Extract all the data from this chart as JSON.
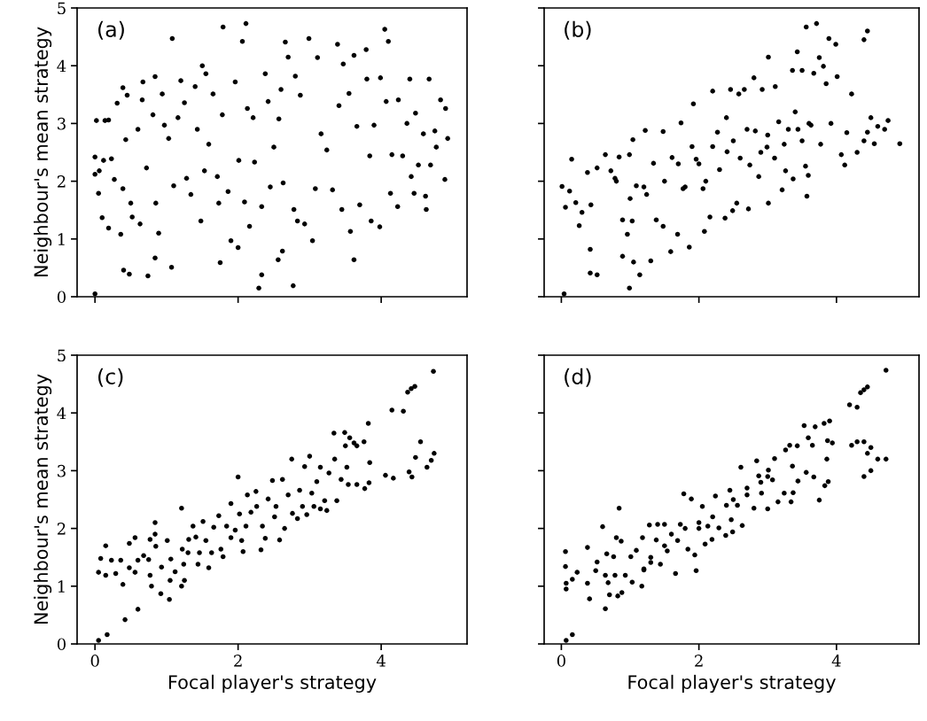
{
  "chart_data": [
    {
      "type": "scatter",
      "ylabel": "Neighbour's mean strategy",
      "annotations": [
        "(a)"
      ],
      "xlim": [
        -0.25,
        5.2
      ],
      "ylim": [
        0,
        5
      ],
      "xticks": [
        0,
        2,
        4
      ],
      "yticks": [
        0,
        1,
        2,
        3,
        4,
        5
      ],
      "tick_labels": "y",
      "marker": "circle",
      "series": [
        {
          "color": "#000000",
          "x": [
            0.0,
            0.0,
            0.02,
            0.0,
            0.06,
            0.05,
            0.1,
            0.14,
            0.19,
            0.12,
            0.19,
            0.23,
            0.27,
            0.31,
            0.36,
            0.39,
            0.4,
            0.48,
            0.45,
            0.43,
            0.39,
            0.5,
            0.52,
            0.67,
            0.6,
            0.63,
            0.66,
            0.72,
            0.74,
            0.81,
            0.84,
            0.84,
            0.85,
            0.89,
            0.94,
            0.97,
            1.03,
            1.07,
            1.08,
            1.1,
            1.16,
            1.2,
            1.25,
            1.28,
            1.34,
            1.4,
            1.43,
            1.48,
            1.5,
            1.55,
            1.53,
            1.59,
            1.65,
            1.71,
            1.73,
            1.75,
            1.78,
            1.79,
            1.86,
            1.9,
            1.96,
            2.0,
            2.01,
            2.06,
            2.11,
            2.09,
            2.13,
            2.16,
            2.21,
            2.23,
            2.29,
            2.33,
            2.33,
            2.38,
            2.42,
            2.45,
            2.5,
            2.56,
            2.57,
            2.6,
            2.62,
            2.63,
            2.66,
            2.7,
            2.77,
            2.78,
            2.8,
            2.83,
            2.87,
            2.93,
            2.99,
            3.04,
            3.11,
            3.08,
            3.16,
            3.24,
            3.32,
            3.39,
            3.41,
            3.45,
            3.47,
            3.55,
            3.57,
            3.62,
            3.62,
            3.66,
            3.7,
            3.79,
            3.8,
            3.84,
            3.86,
            3.9,
            3.98,
            3.99,
            4.05,
            4.1,
            4.07,
            4.13,
            4.15,
            4.23,
            4.24,
            4.3,
            4.36,
            4.4,
            4.42,
            4.46,
            4.48,
            4.52,
            4.59,
            4.62,
            4.63,
            4.67,
            4.69,
            4.75,
            4.77,
            4.83,
            4.89,
            4.9,
            4.93
          ],
          "values": [
            0.05,
            2.42,
            3.05,
            2.12,
            2.18,
            1.79,
            1.37,
            3.05,
            3.06,
            2.36,
            1.19,
            2.39,
            2.03,
            3.35,
            1.08,
            3.62,
            0.46,
            0.39,
            3.49,
            2.72,
            1.87,
            1.62,
            1.38,
            3.72,
            2.9,
            1.26,
            3.41,
            2.23,
            0.36,
            3.15,
            3.81,
            0.67,
            1.62,
            1.1,
            3.51,
            2.97,
            2.74,
            0.51,
            4.47,
            1.92,
            3.1,
            3.74,
            3.36,
            2.05,
            1.77,
            3.64,
            2.9,
            1.31,
            4.0,
            3.86,
            2.18,
            2.64,
            3.51,
            2.08,
            1.62,
            0.59,
            3.15,
            4.67,
            1.82,
            0.97,
            3.72,
            0.85,
            2.36,
            4.42,
            4.73,
            1.64,
            3.26,
            1.22,
            3.1,
            2.33,
            0.15,
            0.38,
            1.56,
            3.86,
            3.38,
            1.9,
            2.59,
            0.64,
            3.08,
            3.59,
            0.79,
            1.97,
            4.41,
            4.15,
            0.19,
            1.51,
            3.82,
            1.31,
            3.49,
            1.26,
            4.47,
            0.97,
            4.14,
            1.87,
            2.82,
            2.54,
            1.85,
            4.37,
            3.31,
            1.51,
            4.03,
            3.52,
            1.13,
            0.64,
            4.18,
            2.95,
            1.59,
            4.28,
            3.77,
            2.44,
            1.31,
            2.97,
            1.21,
            3.79,
            4.63,
            4.42,
            3.38,
            1.79,
            2.46,
            1.56,
            3.41,
            2.44,
            3.0,
            3.77,
            2.08,
            1.79,
            3.18,
            2.28,
            2.82,
            1.74,
            1.51,
            3.77,
            2.28,
            2.87,
            2.59,
            3.41,
            2.03,
            3.26,
            2.74
          ]
        }
      ]
    },
    {
      "type": "scatter",
      "annotations": [
        "(b)"
      ],
      "xlim": [
        -0.25,
        5.2
      ],
      "ylim": [
        0,
        5
      ],
      "xticks": [
        0,
        2,
        4
      ],
      "yticks": [
        0,
        1,
        2,
        3,
        4,
        5
      ],
      "tick_labels": false,
      "marker": "circle",
      "series": [
        {
          "color": "#000000",
          "x": [
            0.04,
            0.01,
            0.06,
            0.15,
            0.12,
            0.21,
            0.26,
            0.3,
            0.38,
            0.42,
            0.42,
            0.52,
            0.43,
            0.52,
            0.64,
            0.72,
            0.78,
            0.84,
            0.89,
            0.89,
            0.96,
            0.99,
            0.99,
            1.04,
            1.03,
            1.05,
            1.14,
            1.09,
            1.22,
            1.24,
            1.3,
            1.34,
            1.38,
            1.48,
            1.48,
            1.59,
            1.61,
            1.69,
            1.74,
            1.86,
            1.77,
            1.92,
            1.96,
            2.08,
            2.06,
            2.16,
            2.2,
            2.27,
            2.38,
            2.46,
            2.41,
            2.49,
            2.55,
            2.58,
            2.66,
            2.72,
            2.74,
            2.8,
            2.82,
            2.87,
            2.92,
            3.01,
            3.01,
            2.99,
            3.11,
            3.16,
            3.21,
            3.24,
            3.26,
            3.36,
            3.37,
            3.43,
            3.44,
            3.5,
            3.55,
            3.56,
            3.57,
            3.59,
            3.63,
            3.67,
            3.71,
            3.75,
            3.77,
            3.81,
            3.85,
            3.89,
            3.92,
            3.99,
            4.01,
            4.07,
            4.12,
            4.15,
            4.22,
            4.3,
            4.4,
            4.45,
            4.55,
            4.6,
            4.7,
            4.75,
            4.92,
            4.5,
            4.4,
            4.45,
            1.5,
            1.7,
            1.8,
            2.0,
            2.2,
            2.3,
            2.5,
            2.6,
            2.7,
            2.9,
            3.0,
            3.1,
            3.3,
            3.4,
            3.5,
            3.6,
            1.2,
            1.0,
            0.8,
            2.4,
            2.1,
            1.9
          ],
          "values": [
            0.05,
            1.91,
            1.55,
            2.38,
            1.83,
            1.63,
            1.23,
            1.46,
            2.15,
            0.82,
            0.41,
            0.38,
            1.59,
            2.23,
            2.46,
            2.18,
            2.05,
            2.42,
            1.33,
            0.7,
            1.08,
            0.15,
            2.46,
            2.72,
            1.31,
            0.6,
            0.38,
            1.92,
            2.88,
            1.77,
            0.62,
            2.31,
            1.33,
            2.86,
            1.22,
            0.78,
            2.41,
            1.08,
            3.01,
            0.86,
            1.87,
            3.34,
            2.38,
            1.13,
            1.87,
            1.38,
            3.56,
            2.85,
            1.36,
            3.59,
            2.51,
            1.49,
            1.62,
            3.51,
            3.59,
            1.52,
            2.28,
            3.79,
            2.87,
            2.08,
            3.59,
            4.15,
            1.62,
            2.59,
            3.64,
            3.03,
            1.85,
            2.64,
            2.18,
            3.92,
            2.04,
            4.24,
            2.9,
            3.92,
            2.26,
            4.67,
            1.74,
            2.1,
            2.97,
            3.87,
            4.73,
            4.14,
            2.64,
            3.99,
            3.69,
            4.47,
            3.0,
            4.37,
            3.81,
            2.46,
            2.28,
            2.84,
            3.51,
            2.5,
            2.7,
            2.85,
            2.65,
            2.95,
            2.9,
            3.05,
            2.65,
            3.1,
            4.45,
            4.6,
            2.0,
            2.3,
            1.9,
            2.3,
            2.6,
            2.2,
            2.7,
            2.4,
            2.9,
            2.5,
            2.8,
            2.4,
            2.9,
            3.2,
            2.7,
            3.0,
            1.9,
            1.7,
            2.0,
            3.1,
            2.0,
            2.6
          ]
        }
      ]
    },
    {
      "type": "scatter",
      "xlabel": "Focal player's strategy",
      "ylabel": "Neighbour's mean strategy",
      "annotations": [
        "(c)"
      ],
      "xlim": [
        -0.25,
        5.2
      ],
      "ylim": [
        0,
        5
      ],
      "xticks": [
        0,
        2,
        4
      ],
      "yticks": [
        0,
        1,
        2,
        3,
        4,
        5
      ],
      "marker": "circle",
      "series": [
        {
          "color": "#000000",
          "x": [
            0.05,
            0.17,
            0.42,
            0.6,
            0.05,
            0.08,
            0.15,
            0.15,
            0.23,
            0.29,
            0.36,
            0.39,
            0.48,
            0.48,
            0.56,
            0.56,
            0.6,
            0.68,
            0.75,
            0.77,
            0.77,
            0.79,
            0.84,
            0.84,
            0.85,
            0.92,
            0.93,
            1.01,
            1.04,
            1.05,
            1.06,
            1.12,
            1.21,
            1.21,
            1.22,
            1.24,
            1.25,
            1.31,
            1.3,
            1.37,
            1.41,
            1.44,
            1.46,
            1.51,
            1.55,
            1.59,
            1.63,
            1.66,
            1.73,
            1.76,
            1.79,
            1.84,
            1.9,
            1.9,
            1.96,
            2.0,
            2.02,
            2.05,
            2.07,
            2.11,
            2.13,
            2.18,
            2.25,
            2.26,
            2.32,
            2.34,
            2.38,
            2.42,
            2.48,
            2.51,
            2.53,
            2.58,
            2.62,
            2.65,
            2.7,
            2.75,
            2.76,
            2.83,
            2.86,
            2.9,
            2.93,
            2.96,
            3.0,
            3.03,
            3.06,
            3.1,
            3.15,
            3.15,
            3.21,
            3.24,
            3.27,
            3.34,
            3.35,
            3.38,
            3.44,
            3.49,
            3.5,
            3.52,
            3.54,
            3.56,
            3.62,
            3.66,
            3.66,
            3.76,
            3.77,
            3.82,
            3.83,
            3.84,
            4.06,
            4.15,
            4.17,
            4.31,
            4.37,
            4.39,
            4.42,
            4.43,
            4.47,
            4.48,
            4.55,
            4.64,
            4.7,
            4.73,
            4.74
          ],
          "values": [
            0.06,
            0.16,
            0.42,
            0.6,
            1.24,
            1.48,
            1.7,
            1.19,
            1.45,
            1.22,
            1.45,
            1.03,
            1.74,
            1.32,
            1.84,
            1.24,
            1.45,
            1.53,
            1.46,
            1.81,
            1.19,
            1.0,
            2.1,
            1.9,
            1.69,
            0.87,
            1.33,
            1.79,
            0.77,
            1.1,
            1.47,
            1.25,
            2.35,
            1.0,
            1.64,
            1.38,
            1.1,
            1.81,
            1.58,
            2.04,
            1.85,
            1.38,
            1.58,
            2.12,
            1.79,
            1.32,
            1.58,
            2.02,
            2.22,
            1.64,
            1.51,
            2.04,
            2.43,
            1.84,
            1.97,
            2.89,
            2.25,
            1.79,
            1.6,
            2.04,
            2.58,
            2.28,
            2.64,
            2.38,
            1.63,
            2.04,
            1.83,
            2.51,
            2.83,
            2.2,
            2.38,
            1.8,
            2.85,
            2.0,
            2.58,
            3.2,
            2.26,
            2.17,
            2.66,
            2.38,
            3.07,
            2.24,
            3.25,
            2.61,
            2.38,
            2.81,
            3.06,
            2.34,
            2.48,
            2.31,
            2.96,
            3.65,
            3.2,
            2.48,
            2.85,
            3.66,
            3.43,
            3.06,
            2.76,
            3.57,
            3.48,
            2.76,
            3.43,
            3.5,
            2.69,
            3.82,
            2.79,
            3.14,
            2.92,
            4.05,
            2.87,
            4.03,
            4.36,
            2.98,
            4.42,
            2.89,
            4.46,
            3.23,
            3.5,
            3.06,
            3.18,
            4.72,
            3.3
          ]
        }
      ]
    },
    {
      "type": "scatter",
      "xlabel": "Focal player's strategy",
      "annotations": [
        "(d)"
      ],
      "xlim": [
        -0.25,
        5.2
      ],
      "ylim": [
        0,
        5
      ],
      "xticks": [
        0,
        2,
        4
      ],
      "yticks": [
        0,
        1,
        2,
        3,
        4,
        5
      ],
      "tick_labels": "x",
      "marker": "circle",
      "series": [
        {
          "color": "#000000",
          "x": [
            0.07,
            0.16,
            0.06,
            0.06,
            0.07,
            0.07,
            0.16,
            0.23,
            0.38,
            0.38,
            0.41,
            0.52,
            0.5,
            0.6,
            0.64,
            0.64,
            0.66,
            0.68,
            0.7,
            0.76,
            0.8,
            0.78,
            0.82,
            0.84,
            0.87,
            0.88,
            0.93,
            1.01,
            1.03,
            1.09,
            1.17,
            1.18,
            1.2,
            1.28,
            1.3,
            1.38,
            1.4,
            1.44,
            1.5,
            1.54,
            1.66,
            1.69,
            1.73,
            1.78,
            1.84,
            1.89,
            1.94,
            1.96,
            2.0,
            2.05,
            2.09,
            2.13,
            2.19,
            2.24,
            2.29,
            2.39,
            2.45,
            2.47,
            2.49,
            2.56,
            2.61,
            2.63,
            2.7,
            2.8,
            2.84,
            2.87,
            2.91,
            3.0,
            3.01,
            3.07,
            3.1,
            3.15,
            3.24,
            3.26,
            3.32,
            3.34,
            3.36,
            3.37,
            3.43,
            3.44,
            3.53,
            3.56,
            3.59,
            3.65,
            3.67,
            3.69,
            3.75,
            3.82,
            3.83,
            3.86,
            3.88,
            3.87,
            3.9,
            3.94,
            4.19,
            4.22,
            4.3,
            4.35,
            4.4,
            4.45,
            4.3,
            4.4,
            4.45,
            4.5,
            4.4,
            4.6,
            4.5,
            4.72,
            4.72,
            1.5,
            1.6,
            1.8,
            2.0,
            2.2,
            2.4,
            2.5,
            2.7,
            2.9,
            3.0,
            1.3,
            1.2
          ],
          "values": [
            0.06,
            0.16,
            1.6,
            1.34,
            1.05,
            0.95,
            1.12,
            1.24,
            1.67,
            1.05,
            0.78,
            1.42,
            1.27,
            2.03,
            0.61,
            1.19,
            1.56,
            1.06,
            0.85,
            1.51,
            1.84,
            1.19,
            0.83,
            2.35,
            1.78,
            0.89,
            1.19,
            1.51,
            1.07,
            1.62,
            1.0,
            1.84,
            1.28,
            2.06,
            1.41,
            1.8,
            2.07,
            1.38,
            2.07,
            1.61,
            1.22,
            1.79,
            2.07,
            2.6,
            1.64,
            2.51,
            1.54,
            1.27,
            2.1,
            2.38,
            1.73,
            2.04,
            1.81,
            2.56,
            2.01,
            1.88,
            2.66,
            2.15,
            1.94,
            2.4,
            3.06,
            2.05,
            2.58,
            2.35,
            3.17,
            2.91,
            2.61,
            2.34,
            3.01,
            2.84,
            3.21,
            2.46,
            2.61,
            3.36,
            3.44,
            2.46,
            3.08,
            2.62,
            3.43,
            2.82,
            3.78,
            2.97,
            3.57,
            3.44,
            2.89,
            3.76,
            2.49,
            3.82,
            2.74,
            3.2,
            2.81,
            3.52,
            3.86,
            3.48,
            4.14,
            3.44,
            4.1,
            4.35,
            4.4,
            4.45,
            3.5,
            3.5,
            3.3,
            3.0,
            2.9,
            3.2,
            3.4,
            4.74,
            3.2,
            1.7,
            1.9,
            2.0,
            2.0,
            2.2,
            2.4,
            2.5,
            2.7,
            2.8,
            2.9,
            1.5,
            1.3
          ]
        }
      ]
    }
  ]
}
